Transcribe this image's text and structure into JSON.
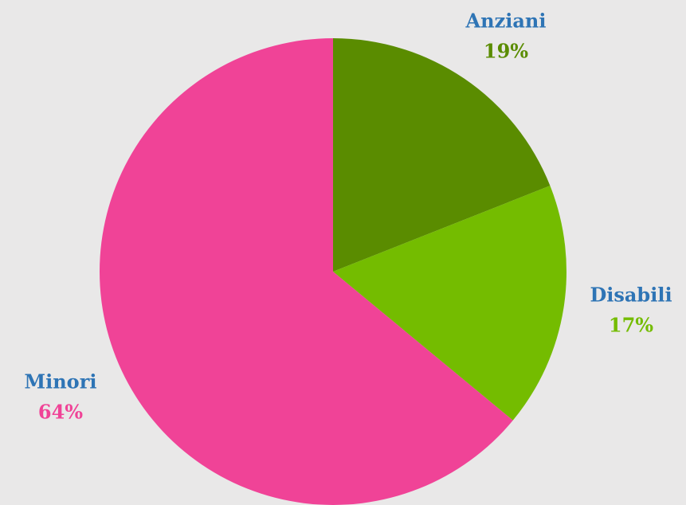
{
  "chart_data": {
    "type": "pie",
    "categories": [
      "Anziani",
      "Disabili",
      "Minori"
    ],
    "values": [
      19,
      17,
      64
    ],
    "value_labels": [
      "19%",
      "17%",
      "64%"
    ],
    "colors": [
      "#5a8c00",
      "#74bc00",
      "#f04397"
    ],
    "label_color": "#2e74b5"
  }
}
